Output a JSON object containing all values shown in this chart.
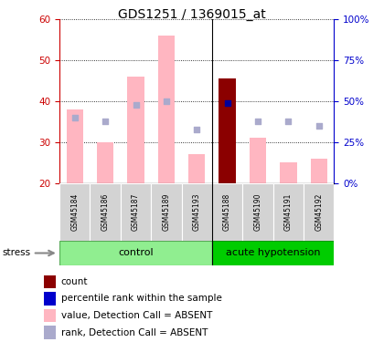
{
  "title": "GDS1251 / 1369015_at",
  "samples": [
    "GSM45184",
    "GSM45186",
    "GSM45187",
    "GSM45189",
    "GSM45193",
    "GSM45188",
    "GSM45190",
    "GSM45191",
    "GSM45192"
  ],
  "pink_bar_values": [
    38,
    30,
    46,
    56,
    27,
    45.5,
    31,
    25,
    26
  ],
  "blue_square_values": [
    36,
    35,
    39,
    40,
    33,
    39.5,
    35,
    35,
    34
  ],
  "red_bar_index": 5,
  "ylim_left": [
    20,
    60
  ],
  "ylim_right": [
    0,
    100
  ],
  "yticks_left": [
    20,
    30,
    40,
    50,
    60
  ],
  "ytick_labels_right": [
    "0%",
    "25%",
    "50%",
    "75%",
    "100%"
  ],
  "pink_bar_color": "#FFB6C1",
  "red_bar_color": "#8B0000",
  "blue_square_color": "#AAAACC",
  "blue_dot_color": "#000099",
  "left_axis_color": "#CC0000",
  "right_axis_color": "#0000CC",
  "sample_bg_color": "#D3D3D3",
  "control_light": "#90EE90",
  "acute_green": "#00CC00",
  "legend_items": [
    "count",
    "percentile rank within the sample",
    "value, Detection Call = ABSENT",
    "rank, Detection Call = ABSENT"
  ],
  "legend_colors": [
    "#8B0000",
    "#0000CC",
    "#FFB6C1",
    "#AAAACC"
  ],
  "control_label": "control",
  "acute_label": "acute hypotension",
  "stress_label": "stress",
  "n_control": 5,
  "n_total": 9
}
